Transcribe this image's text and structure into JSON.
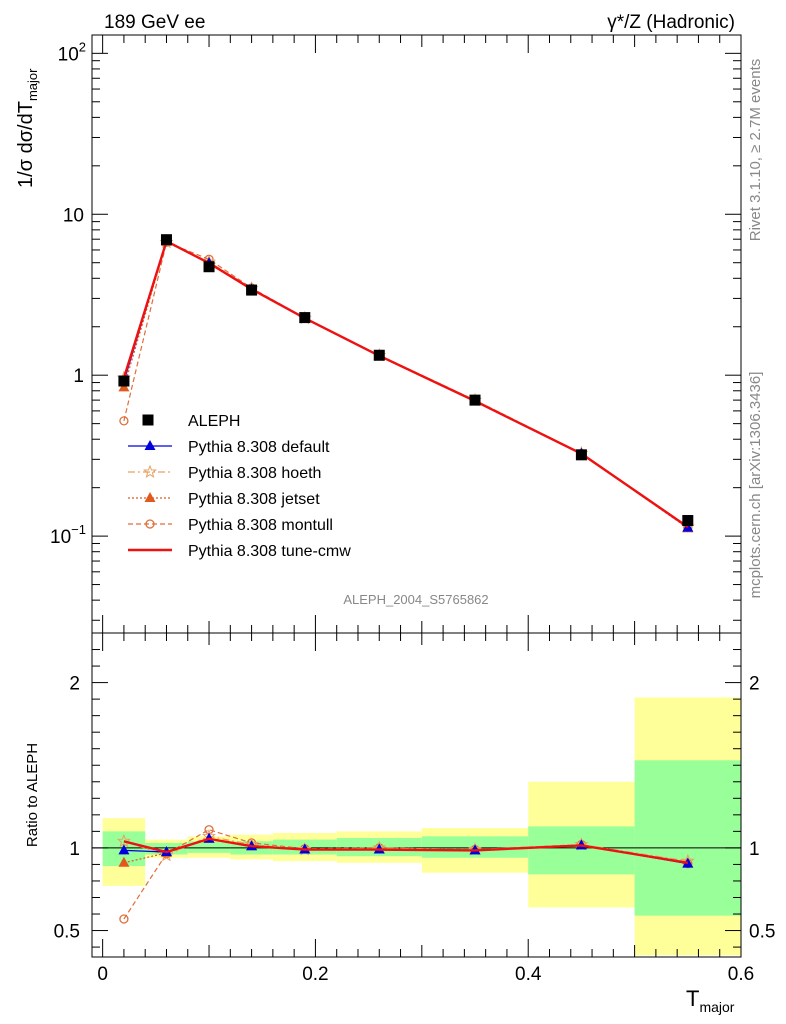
{
  "header": {
    "left_title": "189 GeV ee",
    "right_title": "γ*/Z (Hadronic)"
  },
  "side_labels": {
    "rivet": "Rivet 3.1.10, ≥ 2.7M events",
    "mcplots": "mcplots.cern.ch [arXiv:1306.3436]"
  },
  "watermark": "ALEPH_2004_S5765862",
  "colors": {
    "aleph": "#000000",
    "default": "#0000dd",
    "hoeth": "#e8a060",
    "jetset": "#e05a1e",
    "montull": "#e06e3a",
    "tune_cmw": "#ee1111",
    "band_inner": "#99ff99",
    "band_outer": "#ffff99"
  },
  "chart_data": [
    {
      "type": "line",
      "panel": "main",
      "yscale": "log",
      "ylabel": "1/σ dσ/dT_major",
      "ylim": [
        0.025,
        130
      ],
      "xlim": [
        -0.01,
        0.6
      ],
      "yticks": [
        {
          "value": 0.1,
          "label": "10",
          "exp": "−1"
        },
        {
          "value": 1,
          "label": "1",
          "exp": ""
        },
        {
          "value": 10,
          "label": "10",
          "exp": ""
        },
        {
          "value": 100,
          "label": "10",
          "exp": "2"
        }
      ],
      "x": [
        0.02,
        0.06,
        0.1,
        0.14,
        0.19,
        0.26,
        0.35,
        0.45,
        0.55
      ],
      "bin_edges": [
        0.0,
        0.04,
        0.08,
        0.12,
        0.16,
        0.22,
        0.3,
        0.4,
        0.5,
        0.6
      ],
      "data": {
        "name": "ALEPH",
        "values": [
          0.92,
          6.95,
          4.72,
          3.38,
          2.28,
          1.33,
          0.7,
          0.32,
          0.125
        ]
      },
      "series": [
        {
          "key": "default",
          "name": "Pythia 8.308 default",
          "values": [
            0.91,
            6.85,
            4.97,
            3.42,
            2.25,
            1.32,
            0.69,
            0.325,
            0.113
          ]
        },
        {
          "key": "hoeth",
          "name": "Pythia 8.308 hoeth",
          "values": [
            0.96,
            6.7,
            5.05,
            3.46,
            2.26,
            1.33,
            0.7,
            0.327,
            0.114
          ]
        },
        {
          "key": "jetset",
          "name": "Pythia 8.308 jetset",
          "values": [
            0.84,
            6.75,
            4.98,
            3.42,
            2.26,
            1.32,
            0.69,
            0.325,
            0.112
          ]
        },
        {
          "key": "montull",
          "name": "Pythia 8.308 montull",
          "values": [
            0.52,
            6.7,
            5.25,
            3.48,
            2.27,
            1.33,
            0.7,
            0.326,
            0.113
          ]
        },
        {
          "key": "tune_cmw",
          "name": "Pythia 8.308 tune-cmw",
          "values": [
            0.96,
            6.8,
            4.97,
            3.42,
            2.26,
            1.32,
            0.69,
            0.325,
            0.114
          ]
        }
      ]
    },
    {
      "type": "line",
      "panel": "ratio",
      "ylabel": "Ratio to ALEPH",
      "xlabel": "T_major",
      "ylim": [
        0.34,
        2.3
      ],
      "xlim": [
        -0.01,
        0.6
      ],
      "yticks": [
        0.5,
        1,
        2
      ],
      "xticks": [
        0,
        0.2,
        0.4,
        0.6
      ],
      "x": [
        0.02,
        0.06,
        0.1,
        0.14,
        0.19,
        0.26,
        0.35,
        0.45,
        0.55
      ],
      "bin_edges": [
        0.0,
        0.04,
        0.08,
        0.12,
        0.16,
        0.22,
        0.3,
        0.4,
        0.5,
        0.6
      ],
      "band_inner": [
        [
          0.89,
          1.1
        ],
        [
          0.96,
          1.03
        ],
        [
          0.97,
          1.04
        ],
        [
          0.96,
          1.04
        ],
        [
          0.96,
          1.05
        ],
        [
          0.95,
          1.06
        ],
        [
          0.94,
          1.07
        ],
        [
          0.84,
          1.13
        ],
        [
          0.59,
          1.53
        ],
        [
          0.59,
          1.53
        ]
      ],
      "band_outer": [
        [
          0.77,
          1.18
        ],
        [
          0.94,
          1.05
        ],
        [
          0.94,
          1.07
        ],
        [
          0.93,
          1.08
        ],
        [
          0.92,
          1.09
        ],
        [
          0.91,
          1.1
        ],
        [
          0.85,
          1.12
        ],
        [
          0.64,
          1.4
        ],
        [
          0.35,
          1.91
        ],
        [
          0.35,
          1.91
        ]
      ],
      "series": [
        {
          "key": "default",
          "values": [
            0.985,
            0.975,
            1.055,
            1.01,
            0.99,
            0.99,
            0.985,
            1.015,
            0.905
          ]
        },
        {
          "key": "hoeth",
          "values": [
            1.04,
            0.955,
            1.07,
            1.02,
            0.99,
            1.0,
            0.99,
            1.02,
            0.92
          ]
        },
        {
          "key": "jetset",
          "values": [
            0.91,
            0.97,
            1.055,
            1.01,
            0.99,
            0.99,
            0.985,
            1.015,
            0.905
          ]
        },
        {
          "key": "montull",
          "values": [
            0.57,
            0.965,
            1.11,
            1.03,
            0.995,
            1.0,
            0.99,
            1.02,
            0.905
          ]
        },
        {
          "key": "tune_cmw",
          "values": [
            1.04,
            0.975,
            1.055,
            1.01,
            0.99,
            0.99,
            0.985,
            1.015,
            0.91
          ]
        }
      ]
    }
  ]
}
